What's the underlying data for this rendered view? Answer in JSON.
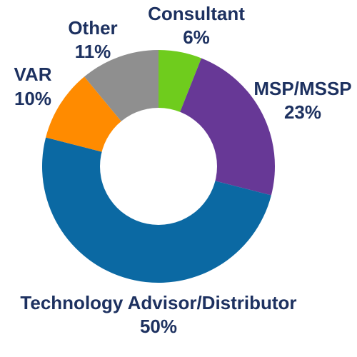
{
  "chart_data": {
    "type": "pie",
    "variant": "donut",
    "slices": [
      {
        "label": "Consultant",
        "value": 6,
        "value_text": "6%",
        "color": "#6fcc1d"
      },
      {
        "label": "MSP/MSSP",
        "value": 23,
        "value_text": "23%",
        "color": "#673896"
      },
      {
        "label": "Technology Advisor/Distributor",
        "value": 50,
        "value_text": "50%",
        "color": "#0b69a3"
      },
      {
        "label": "VAR",
        "value": 10,
        "value_text": "10%",
        "color": "#ff8b00"
      },
      {
        "label": "Other",
        "value": 11,
        "value_text": "11%",
        "color": "#8f8f8f"
      }
    ]
  }
}
